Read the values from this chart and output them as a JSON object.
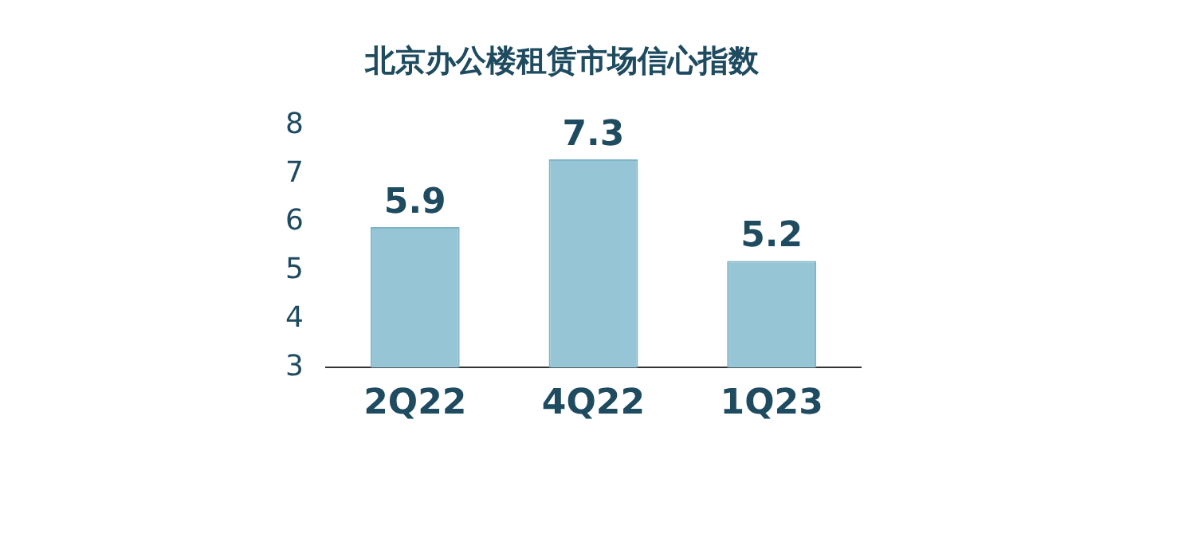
{
  "chart_data": {
    "type": "bar",
    "title": "北京办公楼租赁市场信心指数",
    "categories": [
      "2Q22",
      "4Q22",
      "1Q23"
    ],
    "values": [
      5.9,
      7.3,
      5.2
    ],
    "color": "#96c6d6",
    "ylim": [
      3,
      8
    ],
    "yticks": [
      3,
      4,
      5,
      6,
      7,
      8
    ],
    "grid": false,
    "data_labels": true,
    "legend": false
  }
}
